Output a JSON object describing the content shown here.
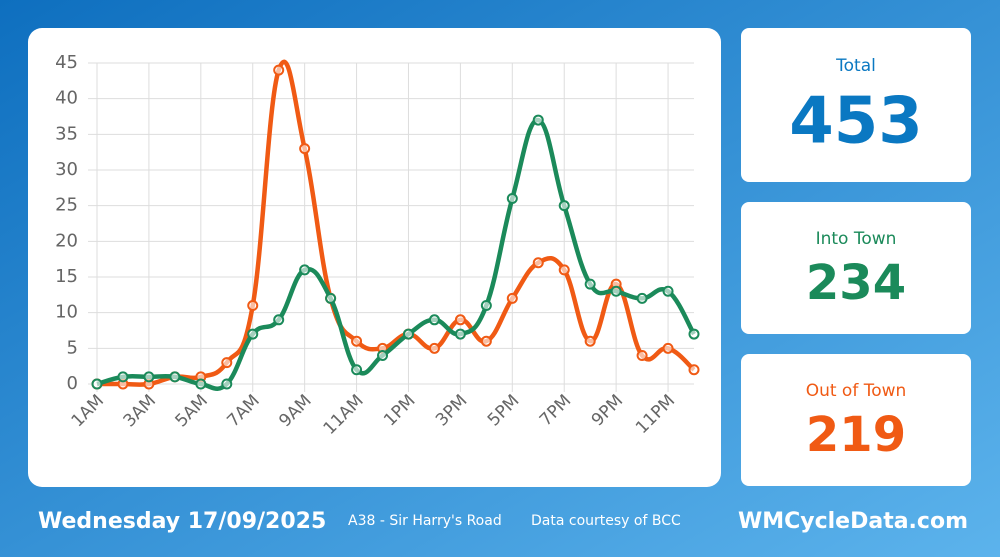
{
  "chart_data": {
    "type": "line",
    "categories": [
      "1AM",
      null,
      "3AM",
      null,
      "5AM",
      null,
      "7AM",
      null,
      "9AM",
      null,
      "11AM",
      null,
      "1PM",
      null,
      "3PM",
      null,
      "5PM",
      null,
      "7PM",
      null,
      "9PM",
      null,
      "11PM",
      null
    ],
    "series": [
      {
        "color": "#f05a14",
        "values": [
          0,
          0,
          0,
          1,
          1,
          3,
          11,
          44,
          33,
          12,
          6,
          5,
          7,
          5,
          9,
          6,
          12,
          17,
          16,
          6,
          14,
          4,
          5,
          2
        ]
      },
      {
        "color": "#1b8a5a",
        "values": [
          0,
          1,
          1,
          1,
          0,
          0,
          7,
          9,
          16,
          12,
          2,
          4,
          7,
          9,
          7,
          11,
          26,
          37,
          25,
          14,
          13,
          12,
          13,
          7
        ]
      }
    ],
    "ylim": [
      0,
      45
    ],
    "yticks": [
      0,
      5,
      10,
      15,
      20,
      25,
      30,
      35,
      40,
      45
    ],
    "grid": true
  },
  "cards": [
    {
      "label": "Total",
      "value": 453,
      "color": "#0a78c2"
    },
    {
      "label": "Into Town",
      "value": 234,
      "color": "#1b8a5a"
    },
    {
      "label": "Out of Town",
      "value": 219,
      "color": "#f05a14"
    }
  ],
  "footer": {
    "date": "Wednesday 17/09/2025",
    "location": "A38 - Sir Harry's Road",
    "credit": "Data courtesy of BCC",
    "site": "WMCycleData.com"
  }
}
